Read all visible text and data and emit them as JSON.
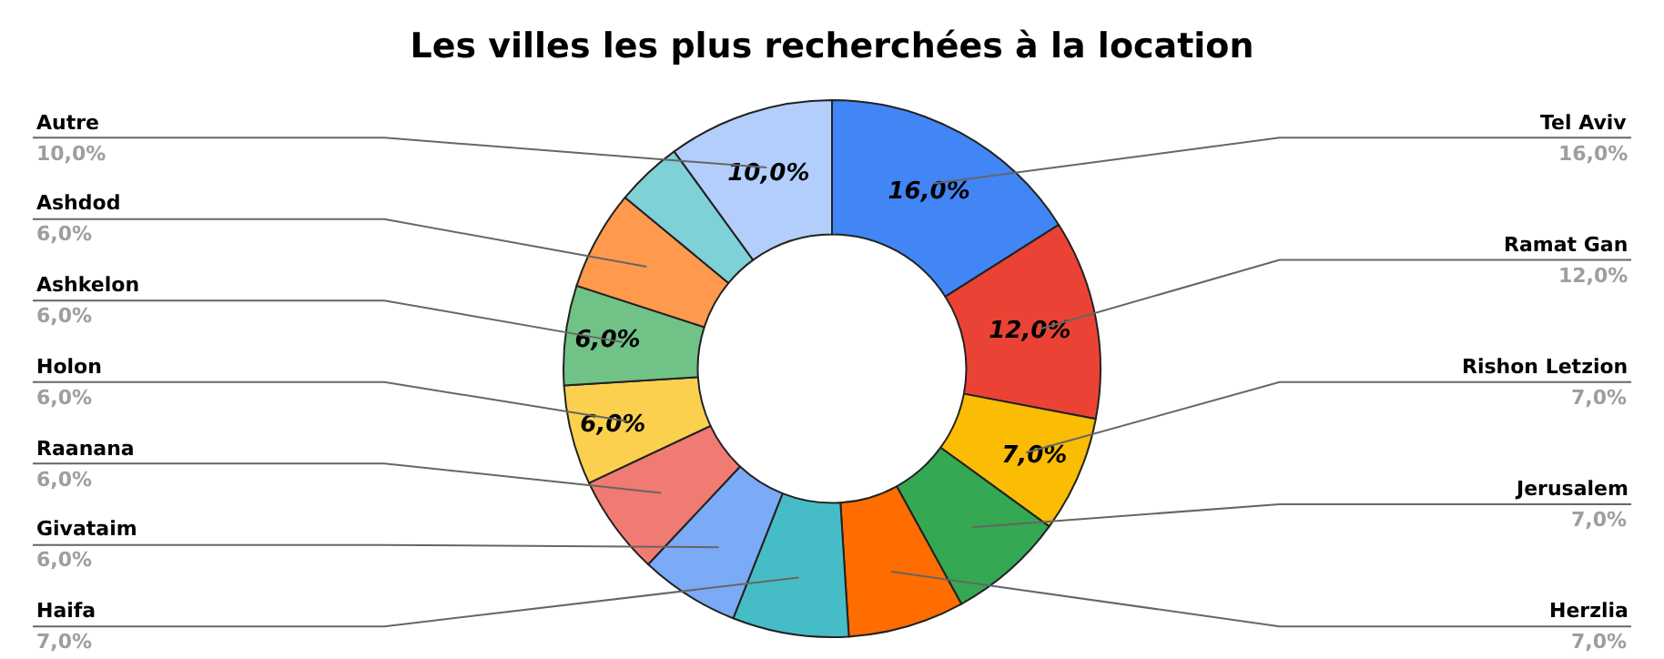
{
  "chart_data": {
    "type": "donut",
    "title": "Les villes les plus recherchées à la location",
    "categories": [
      "Tel Aviv",
      "Ramat Gan",
      "Rishon Letzion",
      "Jerusalem",
      "Herzlia",
      "Haifa",
      "Givataim",
      "Raanana",
      "Holon",
      "Ashkelon",
      "Ashdod",
      null,
      "Autre"
    ],
    "values": [
      16,
      12,
      7,
      7,
      7,
      7,
      6,
      6,
      6,
      6,
      6,
      4,
      10
    ],
    "colors": [
      "#4285f4",
      "#ea4335",
      "#fbbc04",
      "#34a853",
      "#ff6d01",
      "#46bdc6",
      "#7baaf7",
      "#f07b72",
      "#fcd04f",
      "#71c287",
      "#ff994d",
      "#7ed1d7",
      "#b3cefb"
    ],
    "value_labels": [
      "16,0%",
      "12,0%",
      "7,0%",
      "7,0%",
      "7,0%",
      "7,0%",
      "6,0%",
      "6,0%",
      "6,0%",
      "6,0%",
      "6,0%",
      null,
      "10,0%"
    ],
    "annotations": [
      {
        "text": "16,0%",
        "x": "Tel Aviv"
      },
      {
        "text": "12,0%",
        "x": "Ramat Gan"
      },
      {
        "text": "7,0%",
        "x": "Rishon Letzion"
      },
      {
        "text": "6,0%",
        "x": "Holon"
      },
      {
        "text": "6,0%",
        "x": "Ashkelon"
      },
      {
        "text": "10,0%",
        "x": "Autre"
      }
    ],
    "legend": false
  }
}
